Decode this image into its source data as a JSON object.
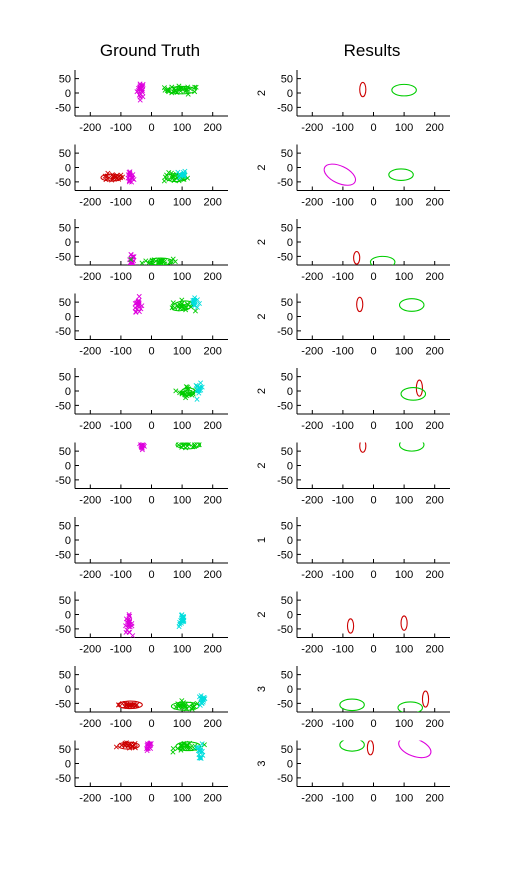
{
  "titles": {
    "left": "Ground Truth",
    "right": "Results"
  },
  "colors": {
    "red": "#cc0000",
    "magenta": "#dd00dd",
    "green": "#00cc00",
    "cyan": "#00dddd",
    "axis": "#000000"
  },
  "axes": {
    "xlim": [
      -250,
      250
    ],
    "ylim": [
      -80,
      80
    ],
    "xticks": [
      -200,
      -100,
      0,
      100,
      200
    ],
    "yticks": [
      50,
      0,
      -50
    ]
  },
  "chart_data": [
    {
      "type": "scatter",
      "panel": "ground-truth",
      "rows": [
        {
          "clusters": [
            {
              "color": "magenta",
              "cx": -35,
              "cy": 12,
              "sx": 6,
              "sy": 14,
              "n": 22,
              "ellipse": false
            },
            {
              "color": "green",
              "cx": 100,
              "cy": 10,
              "sx": 28,
              "sy": 7,
              "n": 32,
              "ellipse": true,
              "rx": 45,
              "ry": 13,
              "rot": 0
            }
          ]
        },
        {
          "clusters": [
            {
              "color": "red",
              "cx": -130,
              "cy": -35,
              "sx": 20,
              "sy": 6,
              "n": 20,
              "ellipse": true,
              "rx": 35,
              "ry": 12,
              "rot": 0
            },
            {
              "color": "magenta",
              "cx": -70,
              "cy": -35,
              "sx": 6,
              "sy": 12,
              "n": 18,
              "ellipse": false
            },
            {
              "color": "green",
              "cx": 80,
              "cy": -35,
              "sx": 20,
              "sy": 8,
              "n": 22,
              "ellipse": true,
              "rx": 35,
              "ry": 14,
              "rot": 0
            },
            {
              "color": "cyan",
              "cx": 100,
              "cy": -25,
              "sx": 6,
              "sy": 8,
              "n": 14,
              "ellipse": false
            }
          ]
        },
        {
          "clusters": [
            {
              "color": "magenta",
              "cx": -65,
              "cy": -58,
              "sx": 6,
              "sy": 13,
              "n": 18,
              "ellipse": false
            },
            {
              "color": "green",
              "cx": 30,
              "cy": -68,
              "sx": 28,
              "sy": 6,
              "n": 30,
              "ellipse": true,
              "rx": 40,
              "ry": 12,
              "rot": 0
            }
          ]
        },
        {
          "clusters": [
            {
              "color": "magenta",
              "cx": -45,
              "cy": 42,
              "sx": 6,
              "sy": 12,
              "n": 20,
              "ellipse": false
            },
            {
              "color": "green",
              "cx": 100,
              "cy": 37,
              "sx": 16,
              "sy": 9,
              "n": 24,
              "ellipse": true,
              "rx": 35,
              "ry": 16,
              "rot": -10
            },
            {
              "color": "cyan",
              "cx": 140,
              "cy": 48,
              "sx": 6,
              "sy": 10,
              "n": 14,
              "ellipse": false
            }
          ]
        },
        {
          "clusters": [
            {
              "color": "green",
              "cx": 120,
              "cy": -2,
              "sx": 14,
              "sy": 10,
              "n": 24,
              "ellipse": true,
              "rx": 22,
              "ry": 13,
              "rot": 0
            },
            {
              "color": "cyan",
              "cx": 155,
              "cy": 5,
              "sx": 6,
              "sy": 10,
              "n": 14,
              "ellipse": false
            }
          ]
        },
        {
          "clusters": [
            {
              "color": "magenta",
              "cx": -30,
              "cy": 68,
              "sx": 5,
              "sy": 6,
              "n": 12,
              "ellipse": false
            },
            {
              "color": "green",
              "cx": 120,
              "cy": 72,
              "sx": 22,
              "sy": 4,
              "n": 18,
              "ellipse": true,
              "rx": 40,
              "ry": 14,
              "rot": 0
            }
          ]
        },
        {
          "clusters": []
        },
        {
          "clusters": [
            {
              "color": "magenta",
              "cx": -75,
              "cy": -35,
              "sx": 6,
              "sy": 15,
              "n": 24,
              "ellipse": false
            },
            {
              "color": "cyan",
              "cx": 100,
              "cy": -20,
              "sx": 5,
              "sy": 12,
              "n": 18,
              "ellipse": false
            }
          ]
        },
        {
          "clusters": [
            {
              "color": "red",
              "cx": -70,
              "cy": -55,
              "sx": 18,
              "sy": 5,
              "n": 22,
              "ellipse": true,
              "rx": 40,
              "ry": 13,
              "rot": 0
            },
            {
              "color": "green",
              "cx": 110,
              "cy": -60,
              "sx": 25,
              "sy": 6,
              "n": 24,
              "ellipse": true,
              "rx": 45,
              "ry": 14,
              "rot": 0
            },
            {
              "color": "cyan",
              "cx": 165,
              "cy": -42,
              "sx": 6,
              "sy": 10,
              "n": 16,
              "ellipse": false
            }
          ]
        },
        {
          "clusters": [
            {
              "color": "red",
              "cx": -75,
              "cy": 62,
              "sx": 15,
              "sy": 5,
              "n": 18,
              "ellipse": true,
              "rx": 35,
              "ry": 12,
              "rot": 0
            },
            {
              "color": "magenta",
              "cx": -10,
              "cy": 55,
              "sx": 6,
              "sy": 10,
              "n": 14,
              "ellipse": false
            },
            {
              "color": "green",
              "cx": 120,
              "cy": 60,
              "sx": 22,
              "sy": 8,
              "n": 24,
              "ellipse": true,
              "rx": 40,
              "ry": 15,
              "rot": 0
            },
            {
              "color": "cyan",
              "cx": 160,
              "cy": 40,
              "sx": 5,
              "sy": 15,
              "n": 16,
              "ellipse": false
            }
          ]
        }
      ]
    },
    {
      "type": "scatter",
      "panel": "results",
      "rows": [
        {
          "label": "2",
          "ellipses": [
            {
              "color": "red",
              "cx": -35,
              "cy": 12,
              "rx": 10,
              "ry": 25,
              "rot": 0
            },
            {
              "color": "green",
              "cx": 100,
              "cy": 10,
              "rx": 40,
              "ry": 20,
              "rot": 0
            }
          ]
        },
        {
          "label": "2",
          "ellipses": [
            {
              "color": "magenta",
              "cx": -110,
              "cy": -25,
              "rx": 55,
              "ry": 30,
              "rot": 25
            },
            {
              "color": "green",
              "cx": 90,
              "cy": -25,
              "rx": 40,
              "ry": 20,
              "rot": 0
            }
          ]
        },
        {
          "label": "2",
          "ellipses": [
            {
              "color": "red",
              "cx": -55,
              "cy": -55,
              "rx": 10,
              "ry": 22,
              "rot": 0
            },
            {
              "color": "green",
              "cx": 30,
              "cy": -70,
              "rx": 40,
              "ry": 20,
              "rot": 0
            }
          ]
        },
        {
          "label": "2",
          "ellipses": [
            {
              "color": "red",
              "cx": -45,
              "cy": 42,
              "rx": 10,
              "ry": 25,
              "rot": 0
            },
            {
              "color": "green",
              "cx": 125,
              "cy": 40,
              "rx": 40,
              "ry": 22,
              "rot": 0
            }
          ]
        },
        {
          "label": "2",
          "ellipses": [
            {
              "color": "red",
              "cx": 150,
              "cy": 10,
              "rx": 10,
              "ry": 28,
              "rot": 0
            },
            {
              "color": "green",
              "cx": 130,
              "cy": -10,
              "rx": 40,
              "ry": 22,
              "rot": 0
            }
          ]
        },
        {
          "label": "2",
          "ellipses": [
            {
              "color": "red",
              "cx": -35,
              "cy": 68,
              "rx": 10,
              "ry": 22,
              "rot": 0
            },
            {
              "color": "green",
              "cx": 125,
              "cy": 72,
              "rx": 40,
              "ry": 22,
              "rot": 0
            }
          ]
        },
        {
          "label": "1",
          "ellipses": []
        },
        {
          "label": "2",
          "ellipses": [
            {
              "color": "red",
              "cx": -75,
              "cy": -40,
              "rx": 10,
              "ry": 25,
              "rot": 0
            },
            {
              "color": "red",
              "cx": 100,
              "cy": -30,
              "rx": 10,
              "ry": 25,
              "rot": 0
            }
          ]
        },
        {
          "label": "3",
          "ellipses": [
            {
              "color": "green",
              "cx": -70,
              "cy": -55,
              "rx": 40,
              "ry": 20,
              "rot": 0
            },
            {
              "color": "green",
              "cx": 120,
              "cy": -65,
              "rx": 40,
              "ry": 20,
              "rot": 0
            },
            {
              "color": "red",
              "cx": 170,
              "cy": -35,
              "rx": 10,
              "ry": 28,
              "rot": 0
            }
          ]
        },
        {
          "label": "3",
          "ellipses": [
            {
              "color": "green",
              "cx": -70,
              "cy": 65,
              "rx": 40,
              "ry": 22,
              "rot": 0
            },
            {
              "color": "red",
              "cx": -10,
              "cy": 55,
              "rx": 10,
              "ry": 25,
              "rot": 0
            },
            {
              "color": "magenta",
              "cx": 135,
              "cy": 55,
              "rx": 55,
              "ry": 30,
              "rot": 20
            }
          ]
        }
      ]
    }
  ]
}
